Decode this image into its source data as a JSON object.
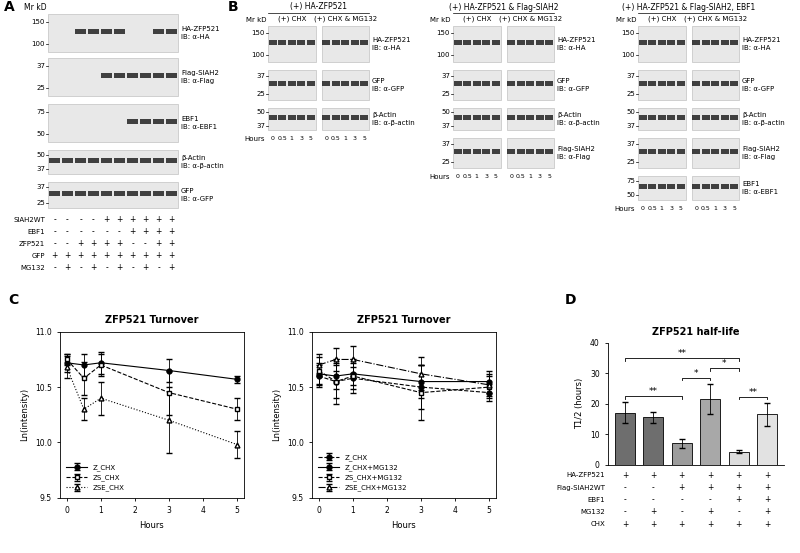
{
  "panel_labels": [
    "A",
    "B",
    "C",
    "D"
  ],
  "blots": {
    "HA": {
      "name": "HA-ZFP521",
      "ib": "IB: α-HA",
      "markers": [
        150,
        100
      ]
    },
    "Flag": {
      "name": "Flag-SIAH2",
      "ib": "IB: α-Flag",
      "markers": [
        37,
        25
      ]
    },
    "EBF1": {
      "name": "EBF1",
      "ib": "IB: α-EBF1",
      "markers": [
        75,
        50
      ]
    },
    "actin": {
      "name": "β-Actin",
      "ib": "IB: α-β-actin",
      "markers": [
        50,
        37
      ]
    },
    "GFP": {
      "name": "GFP",
      "ib": "IB: α-GFP",
      "markers": [
        37,
        25
      ]
    }
  },
  "blot_A": {
    "mr_label": "Mr kD",
    "rows": [
      {
        "blot": "HA",
        "driven_by": "ZFP521"
      },
      {
        "blot": "Flag",
        "driven_by": "SIAH2WT"
      },
      {
        "blot": "EBF1",
        "driven_by": "EBF1"
      },
      {
        "blot": "actin",
        "driven_by": null
      },
      {
        "blot": "GFP",
        "driven_by": "GFP"
      }
    ],
    "conditions": [
      {
        "name": "SIAH2WT",
        "signs": [
          "-",
          "-",
          "-",
          "-",
          "+",
          "+",
          "+",
          "+",
          "+",
          "+"
        ]
      },
      {
        "name": "EBF1",
        "signs": [
          "-",
          "-",
          "-",
          "-",
          "-",
          "-",
          "+",
          "+",
          "+",
          "+"
        ]
      },
      {
        "name": "ZFP521",
        "signs": [
          "-",
          "-",
          "+",
          "+",
          "+",
          "+",
          "-",
          "-",
          "+",
          "+"
        ]
      },
      {
        "name": "GFP",
        "signs": [
          "+",
          "+",
          "+",
          "+",
          "+",
          "+",
          "+",
          "+",
          "+",
          "+"
        ]
      },
      {
        "name": "MG132",
        "signs": [
          "-",
          "+",
          "-",
          "+",
          "-",
          "+",
          "-",
          "+",
          "-",
          "+"
        ]
      }
    ]
  },
  "blot_B": {
    "mr_label": "Mr kD",
    "hours_label": "Hours",
    "hours": [
      0,
      0.5,
      1,
      3,
      5
    ],
    "groups": [
      "(+) CHX",
      "(+) CHX & MG132"
    ],
    "panels": [
      {
        "title": "(+) HA-ZFP521",
        "rows": [
          "HA",
          "GFP",
          "actin"
        ]
      },
      {
        "title": "(+) HA-ZFP521 & Flag-SIAH2",
        "rows": [
          "HA",
          "GFP",
          "actin",
          "Flag"
        ]
      },
      {
        "title": "(+) HA-ZFP521 & Flag-SIAH2, EBF1",
        "rows": [
          "HA",
          "GFP",
          "actin",
          "Flag",
          "EBF1"
        ]
      }
    ]
  },
  "chart_data": [
    {
      "type": "line",
      "title": "ZFP521 Turnover",
      "x_label": "Hours",
      "y_label": "Ln(intensity)",
      "x": [
        0,
        0.5,
        1,
        3,
        5
      ],
      "xlim": [
        -0.2,
        5.2
      ],
      "xticks": [
        0,
        1,
        2,
        3,
        4,
        5
      ],
      "ylim": [
        9.5,
        11.0
      ],
      "yticks": [
        9.5,
        10.0,
        10.5,
        11.0
      ],
      "legend": "lower left",
      "series": [
        {
          "name": "Z_CHX",
          "color": "#000000",
          "marker": "circle",
          "line_style": "solid",
          "values": [
            10.72,
            10.7,
            10.72,
            10.65,
            10.57
          ],
          "errors": [
            0.08,
            0.1,
            0.1,
            0.1,
            0.03
          ]
        },
        {
          "name": "ZS_CHX",
          "color": "#000000",
          "marker": "open_square",
          "line_style": "dashed",
          "values": [
            10.75,
            10.58,
            10.7,
            10.45,
            10.3
          ],
          "errors": [
            0.05,
            0.15,
            0.1,
            0.2,
            0.1
          ]
        },
        {
          "name": "ZSE_CHX",
          "color": "#000000",
          "marker": "open_triangle",
          "line_style": "dotted",
          "values": [
            10.68,
            10.3,
            10.4,
            10.2,
            9.98
          ],
          "errors": [
            0.1,
            0.1,
            0.15,
            0.3,
            0.12
          ]
        }
      ]
    },
    {
      "type": "line",
      "title": "ZFP521 Turnover",
      "x_label": "Hours",
      "y_label": "Ln(intensity)",
      "x": [
        0,
        0.5,
        1,
        3,
        5
      ],
      "xlim": [
        -0.2,
        5.2
      ],
      "xticks": [
        0,
        1,
        2,
        3,
        4,
        5
      ],
      "ylim": [
        9.5,
        11.0
      ],
      "yticks": [
        9.5,
        10.0,
        10.5,
        11.0
      ],
      "legend": "lower left",
      "series": [
        {
          "name": "Z_CHX",
          "color": "#000000",
          "marker": "circle",
          "line_style": "dashed",
          "values": [
            10.6,
            10.55,
            10.58,
            10.5,
            10.45
          ],
          "errors": [
            0.1,
            0.15,
            0.1,
            0.2,
            0.08
          ]
        },
        {
          "name": "Z_CHX+MG132",
          "color": "#000000",
          "marker": "circle",
          "line_style": "solid",
          "values": [
            10.62,
            10.6,
            10.62,
            10.55,
            10.55
          ],
          "errors": [
            0.1,
            0.12,
            0.1,
            0.15,
            0.1
          ]
        },
        {
          "name": "ZS_CHX+MG132",
          "color": "#000000",
          "marker": "open_square",
          "line_style": "dashed",
          "values": [
            10.65,
            10.55,
            10.6,
            10.45,
            10.5
          ],
          "errors": [
            0.12,
            0.2,
            0.15,
            0.25,
            0.1
          ]
        },
        {
          "name": "ZSE_CHX+MG132",
          "color": "#000000",
          "marker": "open_triangle",
          "line_style": "dashdot",
          "values": [
            10.7,
            10.75,
            10.75,
            10.62,
            10.52
          ],
          "errors": [
            0.1,
            0.1,
            0.12,
            0.15,
            0.1
          ]
        }
      ]
    },
    {
      "type": "bar",
      "title": "ZFP521 half-life",
      "y_label": "T1/2 (hours)",
      "categories": [
        null,
        null,
        null,
        null,
        null,
        null
      ],
      "values": [
        17,
        15.5,
        7,
        21.5,
        4.2,
        16.5
      ],
      "errors": [
        3.5,
        1.8,
        1.5,
        5,
        0.5,
        3.7
      ],
      "colors": [
        "#6e6e6e",
        "#6e6e6e",
        "#9c9c9c",
        "#a8a8a8",
        "#dcdcdc",
        "#e2e2e2"
      ],
      "ylim": [
        0,
        40
      ],
      "yticks": [
        0,
        10,
        20,
        30,
        40
      ],
      "tick_labels": "y",
      "significance": [
        {
          "pair": [
            0,
            2
          ],
          "label": "**"
        },
        {
          "pair": [
            2,
            3
          ],
          "label": "*"
        },
        {
          "pair": [
            4,
            5
          ],
          "label": "**"
        },
        {
          "pair": [
            3,
            4
          ],
          "label": "*"
        },
        {
          "pair": [
            0,
            4
          ],
          "label": "**"
        }
      ],
      "conditions": [
        {
          "name": "HA-ZFP521",
          "signs": [
            "+",
            "+",
            "+",
            "+",
            "+",
            "+"
          ]
        },
        {
          "name": "Flag-SIAH2WT",
          "signs": [
            "-",
            "-",
            "+",
            "+",
            "+",
            "+"
          ]
        },
        {
          "name": "EBF1",
          "signs": [
            "-",
            "-",
            "-",
            "-",
            "+",
            "+"
          ]
        },
        {
          "name": "MG132",
          "signs": [
            "-",
            "+",
            "-",
            "+",
            "-",
            "+"
          ]
        },
        {
          "name": "CHX",
          "signs": [
            "+",
            "+",
            "+",
            "+",
            "+",
            "+"
          ]
        }
      ]
    }
  ]
}
